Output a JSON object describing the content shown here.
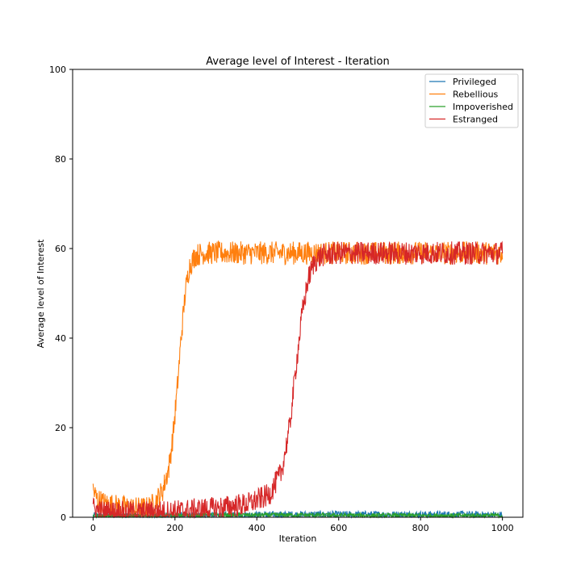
{
  "chart_data": {
    "type": "line",
    "title": "Average level of Interest - Iteration",
    "xlabel": "Iteration",
    "ylabel": "Average level of Interest",
    "xlim": [
      -50,
      1050
    ],
    "ylim": [
      0,
      100
    ],
    "xticks": [
      0,
      200,
      400,
      600,
      800,
      1000
    ],
    "yticks": [
      0,
      20,
      40,
      60,
      80,
      100
    ],
    "grid": false,
    "legend_position": "top-right",
    "series": [
      {
        "name": "Privileged",
        "color": "#1f77b4",
        "points": [
          [
            0,
            0.3
          ],
          [
            100,
            0.2
          ],
          [
            200,
            0.3
          ],
          [
            300,
            0.4
          ],
          [
            400,
            0.5
          ],
          [
            500,
            0.6
          ],
          [
            600,
            0.6
          ],
          [
            700,
            0.6
          ],
          [
            800,
            0.6
          ],
          [
            900,
            0.6
          ],
          [
            1000,
            0.5
          ]
        ],
        "noise": 0.8
      },
      {
        "name": "Rebellious",
        "color": "#ff7f0e",
        "points": [
          [
            0,
            6
          ],
          [
            10,
            4
          ],
          [
            30,
            3
          ],
          [
            60,
            2.5
          ],
          [
            100,
            2
          ],
          [
            130,
            2
          ],
          [
            150,
            3
          ],
          [
            170,
            6
          ],
          [
            185,
            11
          ],
          [
            195,
            18
          ],
          [
            205,
            28
          ],
          [
            215,
            40
          ],
          [
            225,
            50
          ],
          [
            235,
            56
          ],
          [
            250,
            58.5
          ],
          [
            270,
            59
          ],
          [
            300,
            59
          ],
          [
            1000,
            59
          ]
        ],
        "noise": 2.6
      },
      {
        "name": "Impoverished",
        "color": "#2ca02c",
        "points": [
          [
            0,
            0.3
          ],
          [
            100,
            0.3
          ],
          [
            300,
            0.5
          ],
          [
            500,
            0.5
          ],
          [
            700,
            0.4
          ],
          [
            1000,
            0.4
          ]
        ],
        "noise": 0.5
      },
      {
        "name": "Estranged",
        "color": "#d62728",
        "points": [
          [
            0,
            2
          ],
          [
            20,
            1.2
          ],
          [
            100,
            1
          ],
          [
            200,
            1.3
          ],
          [
            300,
            2
          ],
          [
            380,
            3
          ],
          [
            430,
            5
          ],
          [
            460,
            10
          ],
          [
            480,
            20
          ],
          [
            495,
            33
          ],
          [
            510,
            45
          ],
          [
            525,
            53
          ],
          [
            540,
            57
          ],
          [
            560,
            58.5
          ],
          [
            600,
            59
          ],
          [
            1000,
            59
          ]
        ],
        "noise": 2.6
      }
    ]
  }
}
